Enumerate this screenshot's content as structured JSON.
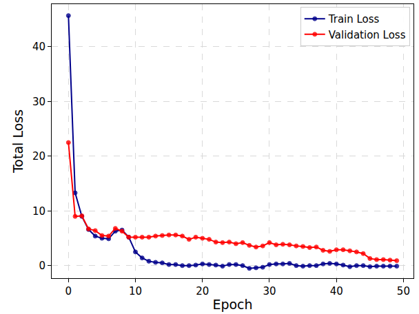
{
  "chart_data": {
    "type": "line",
    "x_label": "Epoch",
    "y_label": "Total Loss",
    "x": [
      0,
      1,
      2,
      3,
      4,
      5,
      6,
      7,
      8,
      9,
      10,
      11,
      12,
      13,
      14,
      15,
      16,
      17,
      18,
      19,
      20,
      21,
      22,
      23,
      24,
      25,
      26,
      27,
      28,
      29,
      30,
      31,
      32,
      33,
      34,
      35,
      36,
      37,
      38,
      39,
      40,
      41,
      42,
      43,
      44,
      45,
      46,
      47,
      48,
      49
    ],
    "series": [
      {
        "name": "Train Loss",
        "color": "#00008b",
        "marker": "circle",
        "values": [
          45.7,
          13.3,
          9.0,
          6.6,
          5.4,
          5.0,
          4.9,
          6.3,
          6.5,
          5.2,
          2.5,
          1.4,
          0.8,
          0.6,
          0.5,
          0.2,
          0.2,
          0.0,
          0.0,
          0.1,
          0.3,
          0.2,
          0.1,
          -0.1,
          0.2,
          0.2,
          0.0,
          -0.5,
          -0.4,
          -0.3,
          0.2,
          0.3,
          0.3,
          0.4,
          0.0,
          -0.1,
          0.0,
          0.0,
          0.3,
          0.4,
          0.3,
          0.1,
          -0.2,
          0.0,
          0.0,
          -0.2,
          -0.1,
          -0.1,
          -0.1,
          -0.1
        ]
      },
      {
        "name": "Validation Loss",
        "color": "#ff0000",
        "marker": "circle",
        "values": [
          22.5,
          9.0,
          9.1,
          6.7,
          6.4,
          5.5,
          5.4,
          6.8,
          6.3,
          5.2,
          5.2,
          5.2,
          5.2,
          5.4,
          5.5,
          5.6,
          5.6,
          5.4,
          4.8,
          5.2,
          5.0,
          4.8,
          4.3,
          4.2,
          4.3,
          4.0,
          4.2,
          3.7,
          3.4,
          3.6,
          4.2,
          3.8,
          3.9,
          3.8,
          3.6,
          3.5,
          3.3,
          3.4,
          2.8,
          2.6,
          2.9,
          2.9,
          2.7,
          2.5,
          2.2,
          1.3,
          1.1,
          1.1,
          1.0,
          0.9
        ]
      }
    ],
    "xlim": [
      -2.5,
      51.5
    ],
    "ylim": [
      -2.3,
      47.8
    ],
    "xticks": [
      0,
      10,
      20,
      30,
      40,
      50
    ],
    "yticks": [
      0,
      10,
      20,
      30,
      40
    ],
    "grid": true,
    "legend": "upper right"
  }
}
